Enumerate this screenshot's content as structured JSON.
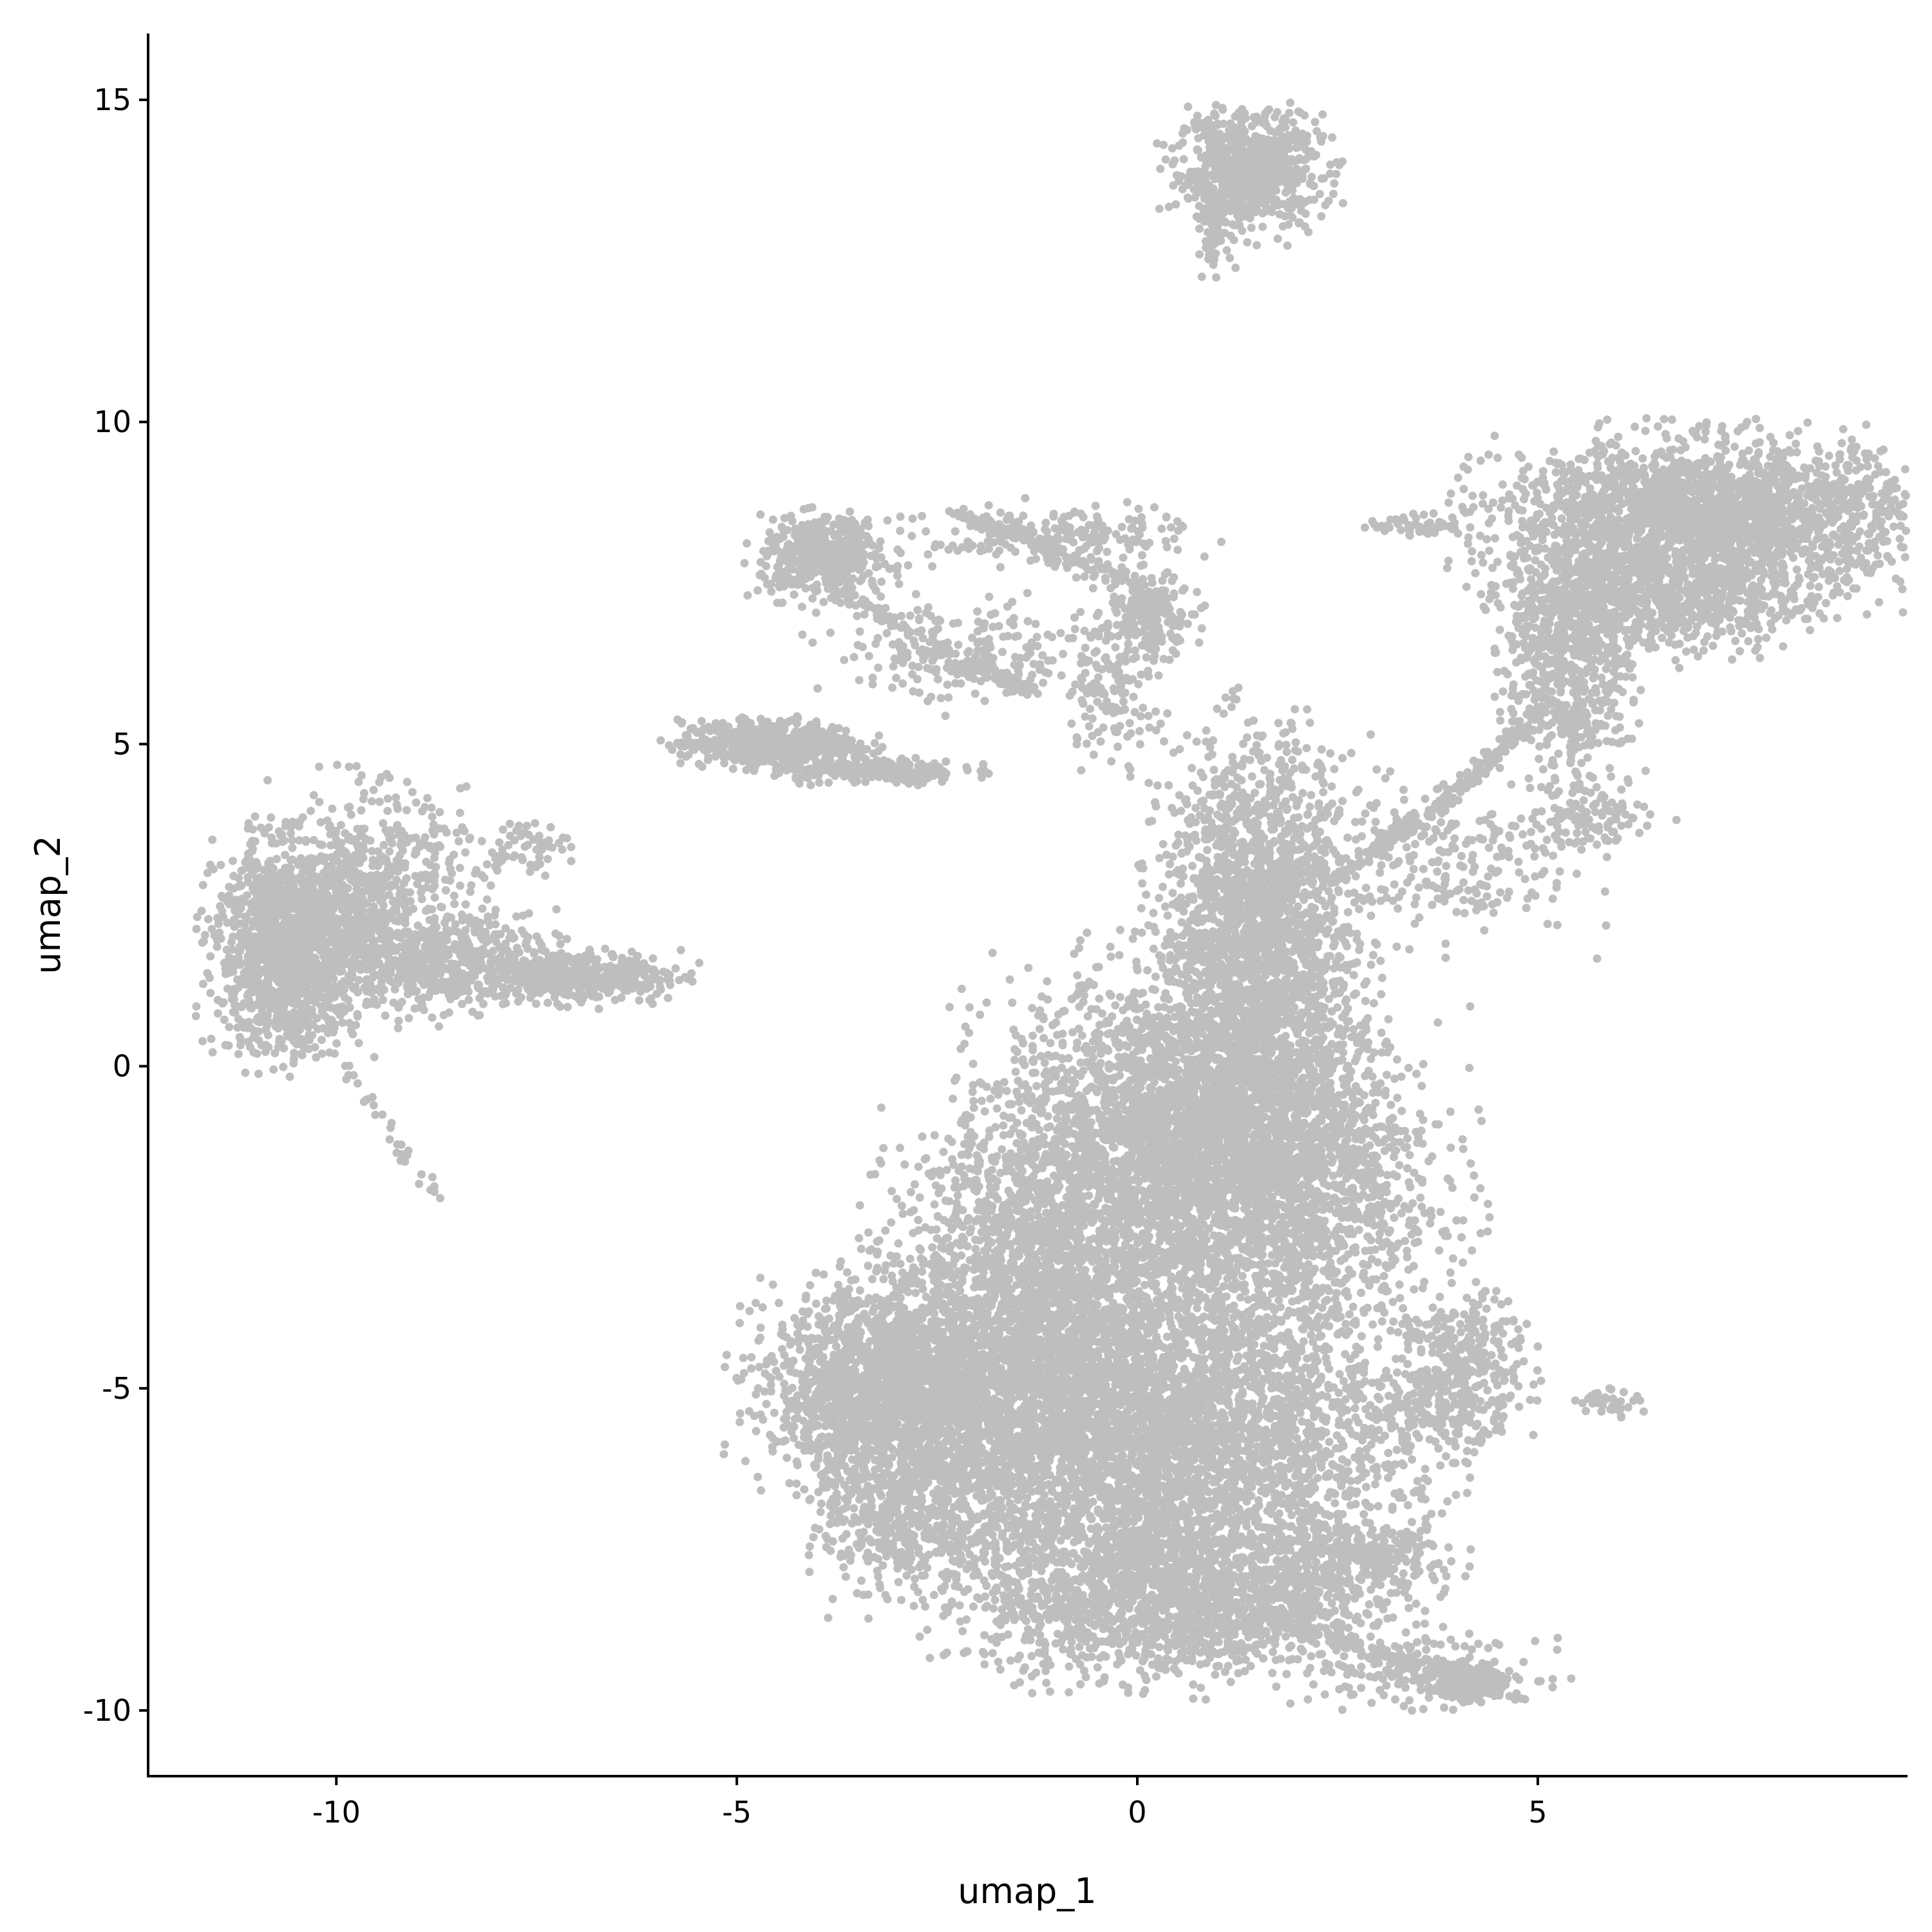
{
  "chart_data": {
    "type": "scatter",
    "title": "",
    "xlabel": "umap_1",
    "ylabel": "umap_2",
    "xlim": [
      -12.35,
      9.6
    ],
    "ylim": [
      -11.0,
      16.0
    ],
    "x_ticks": [
      -10,
      -5,
      0,
      5
    ],
    "y_ticks": [
      -10,
      -5,
      0,
      5,
      10,
      15
    ],
    "x_tick_labels": [
      "-10",
      "-5",
      "0",
      "5"
    ],
    "y_tick_labels": [
      "-10",
      "-5",
      "0",
      "5",
      "10",
      "15"
    ],
    "grid": false,
    "legend": "none",
    "point_color": "#bebebe",
    "series": [
      {
        "clusters": [
          {
            "center": [
              1.4,
              13.9
            ],
            "spread": [
              0.45,
              0.45
            ],
            "n": 700
          },
          {
            "center": [
              1.0,
              13.1
            ],
            "spread": [
              0.12,
              0.35
            ],
            "n": 80
          },
          {
            "center": [
              -10.6,
              1.8
            ],
            "spread": [
              0.45,
              0.8
            ],
            "n": 1300
          },
          {
            "center": [
              -9.6,
              2.6
            ],
            "spread": [
              0.6,
              0.8
            ],
            "n": 700
          },
          {
            "center": [
              -8.6,
              1.6
            ],
            "spread": [
              0.7,
              0.35
            ],
            "n": 500
          },
          {
            "center": [
              -6.9,
              1.4
            ],
            "spread": [
              0.6,
              0.2
            ],
            "n": 400
          },
          {
            "center": [
              -7.7,
              3.4
            ],
            "spread": [
              0.3,
              0.2
            ],
            "n": 60
          },
          {
            "center": [
              -4.6,
              5.0
            ],
            "spread": [
              0.55,
              0.18
            ],
            "n": 500
          },
          {
            "center": [
              -3.4,
              4.6
            ],
            "spread": [
              0.6,
              0.1
            ],
            "n": 200
          },
          {
            "center": [
              -3.9,
              7.9
            ],
            "spread": [
              0.4,
              0.3
            ],
            "n": 450
          },
          {
            "center": [
              -2.2,
              6.4
            ],
            "spread": [
              0.8,
              0.4
            ],
            "n": 200
          },
          {
            "center": [
              -1.0,
              8.2
            ],
            "spread": [
              0.8,
              0.25
            ],
            "n": 200
          },
          {
            "center": [
              0.2,
              7.0
            ],
            "spread": [
              0.25,
              0.3
            ],
            "n": 150
          },
          {
            "center": [
              -0.3,
              6.0
            ],
            "spread": [
              0.3,
              0.6
            ],
            "n": 150
          },
          {
            "center": [
              7.2,
              8.5
            ],
            "spread": [
              1.3,
              0.6
            ],
            "n": 2200
          },
          {
            "center": [
              5.4,
              6.5
            ],
            "spread": [
              0.4,
              1.1
            ],
            "n": 700
          },
          {
            "center": [
              6.5,
              7.2
            ],
            "spread": [
              0.9,
              0.4
            ],
            "n": 600
          },
          {
            "center": [
              3.7,
              3.2
            ],
            "spread": [
              0.9,
              0.6
            ],
            "n": 250
          },
          {
            "center": [
              3.5,
              8.4
            ],
            "spread": [
              0.3,
              0.08
            ],
            "n": 60
          },
          {
            "center": [
              5.7,
              3.9
            ],
            "spread": [
              0.4,
              0.3
            ],
            "n": 100
          },
          {
            "center": [
              1.5,
              2.0
            ],
            "spread": [
              0.6,
              1.5
            ],
            "n": 2000
          },
          {
            "center": [
              0.5,
              -1.0
            ],
            "spread": [
              1.1,
              1.2
            ],
            "n": 2600
          },
          {
            "center": [
              1.8,
              -1.8
            ],
            "spread": [
              1.0,
              1.3
            ],
            "n": 1500
          },
          {
            "center": [
              -1.3,
              -3.0
            ],
            "spread": [
              0.9,
              1.1
            ],
            "n": 1200
          },
          {
            "center": [
              0.0,
              -5.8
            ],
            "spread": [
              1.6,
              1.4
            ],
            "n": 5000
          },
          {
            "center": [
              -2.6,
              -5.0
            ],
            "spread": [
              1.0,
              0.8
            ],
            "n": 1500
          },
          {
            "center": [
              -3.5,
              -5.0
            ],
            "spread": [
              0.5,
              0.7
            ],
            "n": 500
          },
          {
            "center": [
              -3.0,
              -7.0
            ],
            "spread": [
              0.5,
              0.5
            ],
            "n": 350
          },
          {
            "center": [
              0.5,
              -8.3
            ],
            "spread": [
              1.2,
              0.6
            ],
            "n": 1300
          },
          {
            "center": [
              2.8,
              -7.6
            ],
            "spread": [
              0.6,
              0.25
            ],
            "n": 250
          },
          {
            "center": [
              3.6,
              -9.4
            ],
            "spread": [
              0.7,
              0.25
            ],
            "n": 150
          },
          {
            "center": [
              4.2,
              -9.6
            ],
            "spread": [
              0.25,
              0.15
            ],
            "n": 200
          },
          {
            "center": [
              4.1,
              -4.6
            ],
            "spread": [
              0.35,
              0.5
            ],
            "n": 250
          },
          {
            "center": [
              3.8,
              -5.3
            ],
            "spread": [
              0.5,
              0.3
            ],
            "n": 150
          },
          {
            "center": [
              5.9,
              -5.2
            ],
            "spread": [
              0.2,
              0.1
            ],
            "n": 40
          }
        ],
        "trails": [
          {
            "path": [
              [
                -10.0,
                0.2
              ],
              [
                -9.3,
                -1.1
              ],
              [
                -8.7,
                -2.0
              ]
            ],
            "n": 30
          },
          {
            "path": [
              [
                2.6,
                3.0
              ],
              [
                4.2,
                4.5
              ],
              [
                5.1,
                5.6
              ]
            ],
            "n": 200
          },
          {
            "path": [
              [
                -4.5,
                5.3
              ],
              [
                -3.0,
                4.6
              ],
              [
                -2.8,
                4.4
              ]
            ],
            "n": 100
          },
          {
            "path": [
              [
                1.5,
                -8.5
              ],
              [
                3.2,
                -9.2
              ],
              [
                4.2,
                -9.5
              ]
            ],
            "n": 150
          },
          {
            "path": [
              [
                -3.9,
                7.5
              ],
              [
                -2.2,
                6.3
              ],
              [
                -1.3,
                5.8
              ]
            ],
            "n": 150
          },
          {
            "path": [
              [
                -2.3,
                8.6
              ],
              [
                -0.6,
                7.8
              ],
              [
                0.4,
                7.1
              ]
            ],
            "n": 150
          }
        ]
      }
    ]
  }
}
